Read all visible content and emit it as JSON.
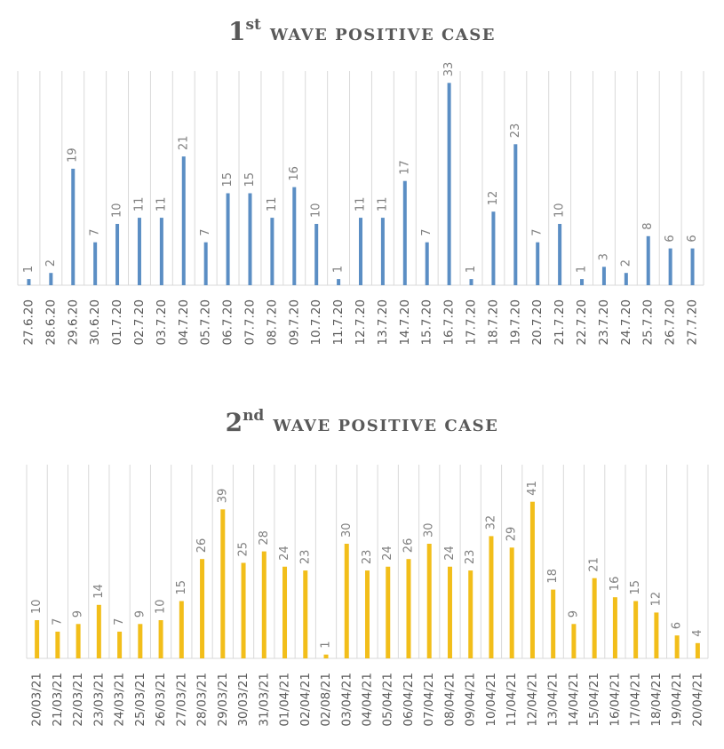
{
  "charts": [
    {
      "title_main": "1",
      "title_sup": "st",
      "title_rest": "WAVE POSITIVE CASE",
      "color": "#5B8EC4"
    },
    {
      "title_main": "2",
      "title_sup": "nd",
      "title_rest": "WAVE POSITIVE CASE",
      "color": "#F2BE1A"
    }
  ],
  "chart_data": [
    {
      "type": "bar",
      "categories": [
        "27.6.20",
        "28.6.20",
        "29.6.20",
        "30.6.20",
        "01.7.20",
        "02.7.20",
        "03.7.20",
        "04.7.20",
        "05.7.20",
        "06.7.20",
        "07.7.20",
        "08.7.20",
        "09.7.20",
        "10.7.20",
        "11.7.20",
        "12.7.20",
        "13.7.20",
        "14.7.20",
        "15.7.20",
        "16.7.20",
        "17.7.20",
        "18.7.20",
        "19.7.20",
        "20.7.20",
        "21.7.20",
        "22.7.20",
        "23.7.20",
        "24.7.20",
        "25.7.20",
        "26.7.20",
        "27.7.20"
      ],
      "values": [
        1,
        2,
        19,
        7,
        10,
        11,
        11,
        21,
        7,
        15,
        15,
        11,
        16,
        10,
        1,
        11,
        11,
        17,
        7,
        33,
        1,
        12,
        23,
        7,
        10,
        1,
        3,
        2,
        8,
        6,
        6
      ],
      "title": "1st WAVE POSITIVE CASE",
      "ylim": [
        0,
        34
      ],
      "grid": "vertical",
      "data_labels": true
    },
    {
      "type": "bar",
      "categories": [
        "20/03/21",
        "21/03/21",
        "22/03/21",
        "23/03/21",
        "24/03/21",
        "25/03/21",
        "26/03/21",
        "27/03/21",
        "28/03/21",
        "29/03/21",
        "30/03/21",
        "31/03/21",
        "01/04/21",
        "02/04/21",
        "02/08/21",
        "03/04/21",
        "04/04/21",
        "05/04/21",
        "06/04/21",
        "07/04/21",
        "08/04/21",
        "09/04/21",
        "10/04/21",
        "11/04/21",
        "12/04/21",
        "13/04/21",
        "14/04/21",
        "15/04/21",
        "16/04/21",
        "17/04/21",
        "18/04/21",
        "19/04/21",
        "20/04/21"
      ],
      "values": [
        10,
        7,
        9,
        14,
        7,
        9,
        10,
        15,
        26,
        39,
        25,
        28,
        24,
        23,
        1,
        30,
        23,
        24,
        26,
        30,
        24,
        23,
        32,
        29,
        41,
        18,
        9,
        21,
        16,
        15,
        12,
        6,
        4
      ],
      "title": "2nd WAVE POSITIVE CASE",
      "ylim": [
        0,
        41
      ],
      "grid": "vertical",
      "data_labels": true
    }
  ]
}
